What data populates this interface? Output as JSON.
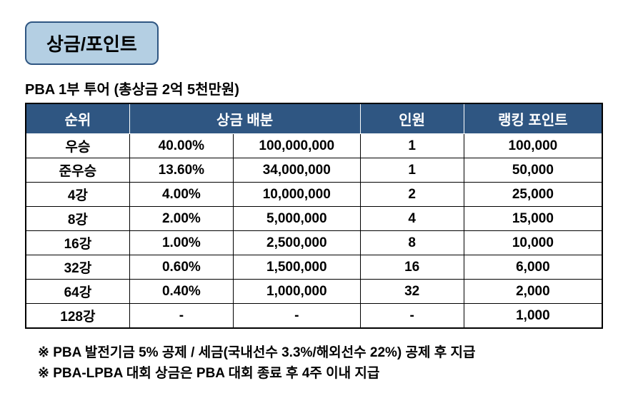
{
  "title": "상금/포인트",
  "subtitle": "PBA 1부 투어 (총상금 2억 5천만원)",
  "table": {
    "headers": {
      "rank": "순위",
      "distribution": "상금 배분",
      "count": "인원",
      "points": "랭킹 포인트"
    },
    "rows": [
      {
        "rank": "우승",
        "pct": "40.00%",
        "amt": "100,000,000",
        "cnt": "1",
        "pts": "100,000"
      },
      {
        "rank": "준우승",
        "pct": "13.60%",
        "amt": "34,000,000",
        "cnt": "1",
        "pts": "50,000"
      },
      {
        "rank": "4강",
        "pct": "4.00%",
        "amt": "10,000,000",
        "cnt": "2",
        "pts": "25,000"
      },
      {
        "rank": "8강",
        "pct": "2.00%",
        "amt": "5,000,000",
        "cnt": "4",
        "pts": "15,000"
      },
      {
        "rank": "16강",
        "pct": "1.00%",
        "amt": "2,500,000",
        "cnt": "8",
        "pts": "10,000"
      },
      {
        "rank": "32강",
        "pct": "0.60%",
        "amt": "1,500,000",
        "cnt": "16",
        "pts": "6,000"
      },
      {
        "rank": "64강",
        "pct": "0.40%",
        "amt": "1,000,000",
        "cnt": "32",
        "pts": "2,000"
      },
      {
        "rank": "128강",
        "pct": "-",
        "amt": "-",
        "cnt": "-",
        "pts": "1,000"
      }
    ]
  },
  "notes": {
    "line1": "※ PBA 발전기금 5% 공제 / 세금(국내선수 3.3%/해외선수 22%) 공제 후 지급",
    "line2": "※ PBA-LPBA 대회 상금은 PBA 대회 종료 후 4주 이내 지급"
  },
  "colors": {
    "title_bg": "#b4cfe3",
    "title_border": "#2f5682",
    "header_bg": "#2f5682",
    "header_text": "#ffffff",
    "cell_bg": "#ffffff",
    "cell_text": "#000000",
    "border": "#000000"
  }
}
